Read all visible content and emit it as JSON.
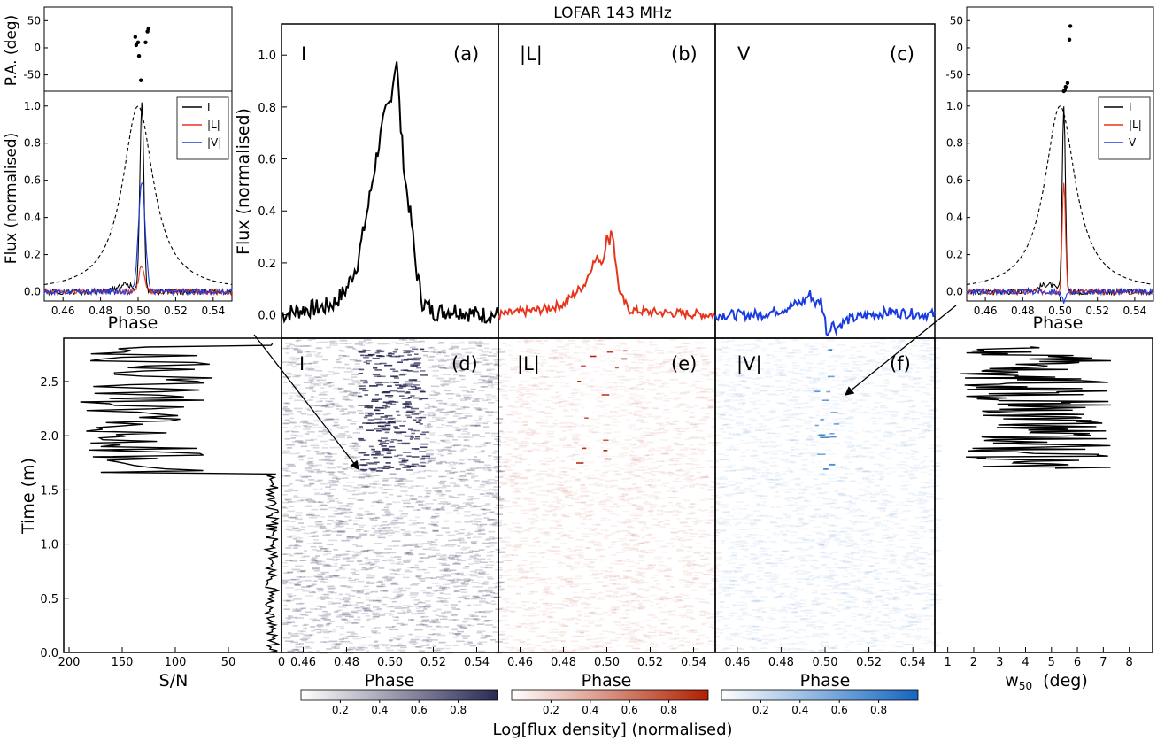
{
  "figure": {
    "title": "LOFAR 143 MHz",
    "colorbar_label": "Log[flux density] (normalised)",
    "colorbar_ticks": [
      "0.2",
      "0.4",
      "0.6",
      "0.8"
    ],
    "colormaps": [
      "#2a2a55",
      "#b02000",
      "#1565c0"
    ]
  },
  "chart_data": [
    {
      "id": "a",
      "type": "line",
      "title": "",
      "panel_label": "(a)",
      "stokes_label": "I",
      "ylabel": "Flux (normalised)",
      "xlim": [
        0.45,
        0.55
      ],
      "ylim": [
        -0.09,
        1.12
      ],
      "yticks": [
        "0.0",
        "0.2",
        "0.4",
        "0.6",
        "0.8",
        "1.0"
      ],
      "color": "#000000",
      "series": [
        {
          "x": [
            0.45,
            0.46,
            0.47,
            0.475,
            0.48,
            0.485,
            0.488,
            0.49,
            0.492,
            0.494,
            0.496,
            0.498,
            0.5,
            0.502,
            0.503,
            0.505,
            0.507,
            0.51,
            0.512,
            0.515,
            0.52,
            0.53,
            0.54,
            0.55
          ],
          "y": [
            0.0,
            0.02,
            0.03,
            0.05,
            0.1,
            0.2,
            0.33,
            0.42,
            0.52,
            0.62,
            0.7,
            0.78,
            0.82,
            0.93,
            1.0,
            0.72,
            0.52,
            0.35,
            0.18,
            0.05,
            0.01,
            0.02,
            0.0,
            0.0
          ]
        }
      ]
    },
    {
      "id": "b",
      "type": "line",
      "title": "",
      "panel_label": "(b)",
      "stokes_label": "|L|",
      "xlim": [
        0.45,
        0.55
      ],
      "ylim": [
        -0.09,
        1.12
      ],
      "color": "#e8341c",
      "series": [
        {
          "x": [
            0.45,
            0.47,
            0.48,
            0.485,
            0.49,
            0.493,
            0.496,
            0.498,
            0.5,
            0.501,
            0.502,
            0.503,
            0.504,
            0.506,
            0.51,
            0.52,
            0.55
          ],
          "y": [
            0.0,
            0.02,
            0.04,
            0.08,
            0.12,
            0.19,
            0.22,
            0.2,
            0.3,
            0.27,
            0.33,
            0.3,
            0.2,
            0.08,
            0.02,
            0.01,
            0.0
          ]
        }
      ]
    },
    {
      "id": "c",
      "type": "line",
      "title": "",
      "panel_label": "(c)",
      "stokes_label": "V",
      "xlim": [
        0.45,
        0.55
      ],
      "ylim": [
        -0.09,
        1.12
      ],
      "color": "#1a3be0",
      "series": [
        {
          "x": [
            0.45,
            0.47,
            0.48,
            0.49,
            0.493,
            0.496,
            0.498,
            0.5,
            0.501,
            0.503,
            0.505,
            0.51,
            0.52,
            0.53,
            0.55
          ],
          "y": [
            0.0,
            0.0,
            0.02,
            0.05,
            0.08,
            0.04,
            0.06,
            -0.02,
            -0.08,
            -0.03,
            -0.05,
            -0.02,
            0.0,
            0.01,
            0.0
          ]
        }
      ]
    },
    {
      "id": "d",
      "type": "heatmap",
      "title": "",
      "panel_label": "(d)",
      "stokes_label": "I",
      "xlabel": "Phase",
      "ylabel": "Time (m)",
      "xlim": [
        0.45,
        0.55
      ],
      "ylim": [
        0.0,
        2.9
      ],
      "xticks": [
        "0.46",
        "0.48",
        "0.50",
        "0.52",
        "0.54"
      ],
      "yticks": [
        "0.0",
        "0.5",
        "1.0",
        "1.5",
        "2.0",
        "2.5"
      ],
      "pulse_phase_range": [
        0.485,
        0.515
      ],
      "pulse_time_range": [
        1.68,
        2.82
      ]
    },
    {
      "id": "e",
      "type": "heatmap",
      "title": "",
      "panel_label": "(e)",
      "stokes_label": "|L|",
      "xlabel": "Phase",
      "xlim": [
        0.45,
        0.55
      ],
      "ylim": [
        0.0,
        2.9
      ],
      "xticks": [
        "0.46",
        "0.48",
        "0.50",
        "0.52",
        "0.54"
      ]
    },
    {
      "id": "f",
      "type": "heatmap",
      "title": "",
      "panel_label": "(f)",
      "stokes_label": "|V|",
      "xlabel": "Phase",
      "xlim": [
        0.45,
        0.55
      ],
      "ylim": [
        0.0,
        2.9
      ],
      "xticks": [
        "0.46",
        "0.48",
        "0.50",
        "0.52",
        "0.54"
      ]
    },
    {
      "id": "sn",
      "type": "line",
      "title": "",
      "xlabel": "S/N",
      "xlim": [
        205,
        0
      ],
      "ylim": [
        0.0,
        2.9
      ],
      "xticks": [
        "200",
        "150",
        "100",
        "50",
        "0"
      ],
      "series": [
        {
          "x": [
            2,
            4,
            3,
            6,
            5,
            15,
            30,
            60,
            180,
            80,
            120,
            70,
            190,
            90,
            130,
            60,
            150,
            100,
            140,
            90,
            160,
            110,
            130,
            40,
            2
          ],
          "y": [
            0.05,
            0.5,
            1.0,
            1.5,
            1.62,
            1.66,
            1.7,
            1.73,
            1.75,
            1.85,
            1.92,
            1.95,
            1.97,
            2.05,
            2.15,
            2.25,
            2.35,
            2.45,
            2.55,
            2.62,
            2.7,
            2.72,
            2.75,
            2.8,
            2.85
          ]
        }
      ]
    },
    {
      "id": "w50",
      "type": "line",
      "title": "",
      "xlabel": "w",
      "xlabel_sub": "50",
      "xlabel_unit": "(deg)",
      "xlim": [
        0.5,
        8.9
      ],
      "ylim": [
        0.0,
        2.9
      ],
      "xticks": [
        "1",
        "2",
        "3",
        "4",
        "5",
        "6",
        "7",
        "8"
      ],
      "series": [
        {
          "x": [
            1.7,
            2.5,
            4.2,
            3.0,
            5.2,
            2.8,
            6.5,
            3.5,
            7.0,
            4.0,
            6.0,
            0.9,
            5.0,
            3.2,
            6.2,
            2.6,
            5.8,
            3.0
          ],
          "y": [
            1.7,
            1.75,
            1.85,
            1.95,
            2.0,
            2.1,
            2.2,
            2.28,
            2.33,
            2.36,
            2.4,
            2.42,
            2.5,
            2.6,
            2.68,
            2.72,
            2.78,
            2.82
          ]
        }
      ]
    },
    {
      "id": "inset_left",
      "type": "line",
      "title": "",
      "xlabel": "Phase",
      "ylabel": "Flux (normalised)",
      "xlim": [
        0.45,
        0.55
      ],
      "ylim": [
        -0.05,
        1.08
      ],
      "xticks": [
        "0.46",
        "0.48",
        "0.50",
        "0.52",
        "0.54"
      ],
      "yticks": [
        "0.0",
        "0.2",
        "0.4",
        "0.6",
        "0.8",
        "1.0"
      ],
      "legend": [
        "I",
        "|L|",
        "|V|"
      ],
      "legend_colors": [
        "#000000",
        "#e8341c",
        "#1a3be0"
      ],
      "pa_ylabel": "P.A. (deg)",
      "pa_yticks": [
        "50",
        "0",
        "-50"
      ],
      "pa_ylim": [
        -80,
        75
      ],
      "pa_points": [
        {
          "x": 0.4985,
          "y": 20
        },
        {
          "x": 0.499,
          "y": 5
        },
        {
          "x": 0.5,
          "y": 10
        },
        {
          "x": 0.5005,
          "y": -15
        },
        {
          "x": 0.5015,
          "y": -60
        },
        {
          "x": 0.504,
          "y": 10
        },
        {
          "x": 0.505,
          "y": 30
        },
        {
          "x": 0.5055,
          "y": 35
        }
      ]
    },
    {
      "id": "inset_right",
      "type": "line",
      "title": "",
      "xlabel": "Phase",
      "xlim": [
        0.45,
        0.55
      ],
      "ylim": [
        -0.05,
        1.08
      ],
      "xticks": [
        "0.46",
        "0.48",
        "0.50",
        "0.52",
        "0.54"
      ],
      "yticks": [
        "0.0",
        "0.2",
        "0.4",
        "0.6",
        "0.8",
        "1.0"
      ],
      "legend": [
        "I",
        "|L|",
        "V"
      ],
      "legend_colors": [
        "#000000",
        "#e8341c",
        "#1a3be0"
      ],
      "pa_yticks": [
        "50",
        "0",
        "-50"
      ],
      "pa_ylim": [
        -80,
        75
      ],
      "pa_points": [
        {
          "x": 0.5055,
          "y": 40
        },
        {
          "x": 0.505,
          "y": 15
        },
        {
          "x": 0.504,
          "y": -65
        },
        {
          "x": 0.503,
          "y": -72
        },
        {
          "x": 0.5025,
          "y": -78
        },
        {
          "x": 0.502,
          "y": -80
        }
      ]
    }
  ]
}
